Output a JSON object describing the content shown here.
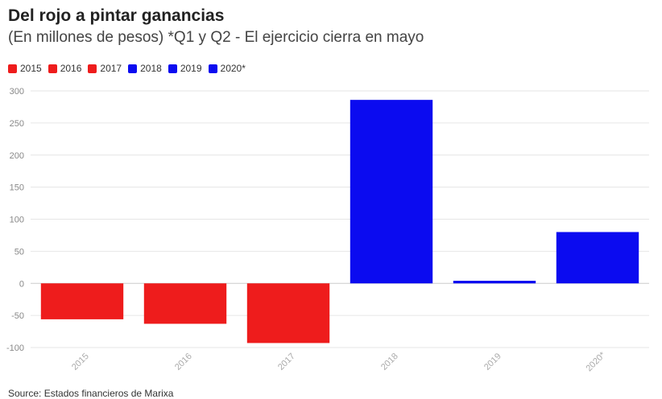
{
  "colors": {
    "negative": "#ee1c1c",
    "positive": "#0b0bf0",
    "grid": "#e6e6e6",
    "text": "#888888"
  },
  "legend": [
    {
      "label": "2015",
      "color": "#ee1c1c"
    },
    {
      "label": "2016",
      "color": "#ee1c1c"
    },
    {
      "label": "2017",
      "color": "#ee1c1c"
    },
    {
      "label": "2018",
      "color": "#0b0bf0"
    },
    {
      "label": "2019",
      "color": "#0b0bf0"
    },
    {
      "label": "2020*",
      "color": "#0b0bf0"
    }
  ],
  "source": "Source: Estados financieros de Marixa",
  "chart_data": {
    "type": "bar",
    "title": "Del rojo a pintar ganancias",
    "subtitle": "(En millones de pesos) *Q1 y Q2 - El ejercicio cierra en mayo",
    "categories": [
      "2015",
      "2016",
      "2017",
      "2018",
      "2019",
      "2020*"
    ],
    "values": [
      -56,
      -63,
      -93,
      286,
      4,
      80
    ],
    "bar_colors": [
      "#ee1c1c",
      "#ee1c1c",
      "#ee1c1c",
      "#0b0bf0",
      "#0b0bf0",
      "#0b0bf0"
    ],
    "ylim": [
      -100,
      300
    ],
    "yticks": [
      300,
      250,
      200,
      150,
      100,
      50,
      0,
      -50,
      -100
    ],
    "grid": true,
    "legend_position": "top-left"
  }
}
